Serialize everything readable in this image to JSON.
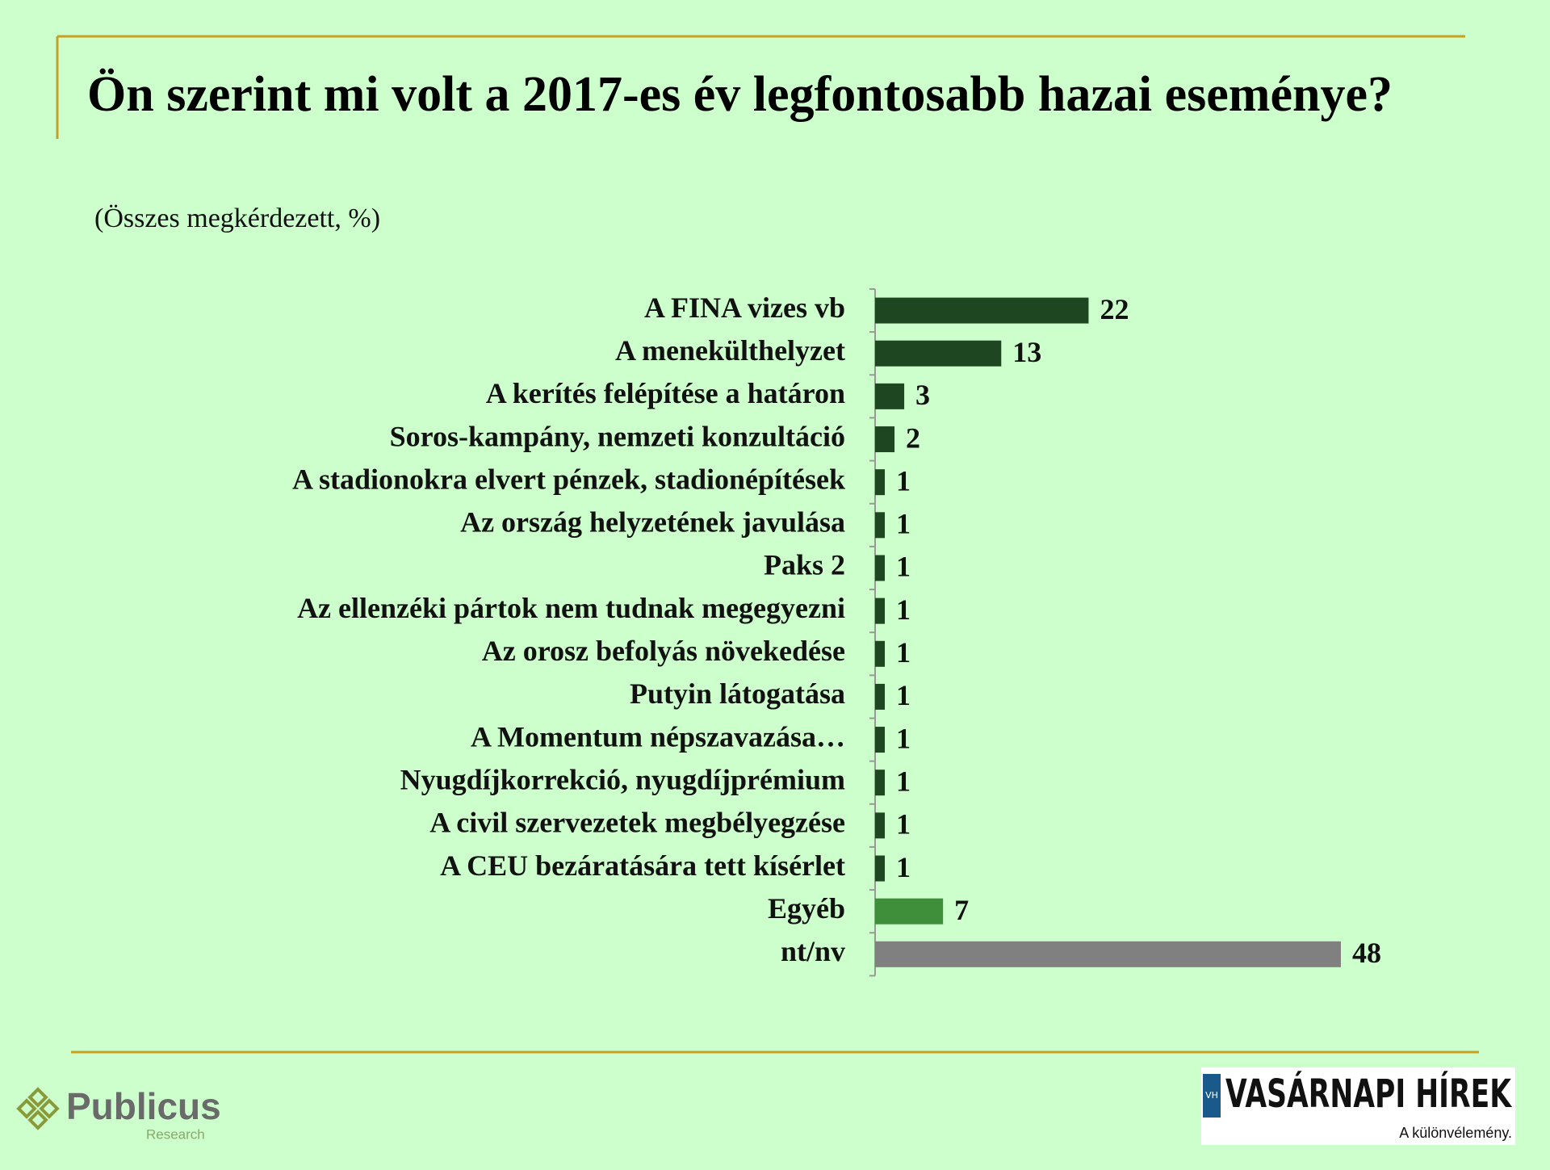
{
  "chart_data": {
    "type": "barh",
    "title": "Ön szerint mi volt a 2017-es év legfontosabb hazai eseménye?",
    "subtitle": "(Összes megkérdezett, %)",
    "categories": [
      "A FINA vizes vb",
      "A menekülthelyzet",
      "A kerítés felépítése a határon",
      "Soros-kampány, nemzeti konzultáció",
      "A stadionokra elvert pénzek, stadionépítések",
      "Az ország helyzetének javulása",
      "Paks 2",
      "Az ellenzéki pártok nem tudnak megegyezni",
      "Az orosz befolyás növekedése",
      "Putyin látogatása",
      "A Momentum népszavazása…",
      "Nyugdíjkorrekció, nyugdíjprémium",
      "A civil szervezetek megbélyegzése",
      "A CEU bezáratására tett kísérlet",
      "Egyéb",
      "nt/nv"
    ],
    "values": [
      22,
      13,
      3,
      2,
      1,
      1,
      1,
      1,
      1,
      1,
      1,
      1,
      1,
      1,
      7,
      48
    ],
    "colors": [
      "#1e4620",
      "#1e4620",
      "#1e4620",
      "#1e4620",
      "#1e4620",
      "#1e4620",
      "#1e4620",
      "#1e4620",
      "#1e4620",
      "#1e4620",
      "#1e4620",
      "#1e4620",
      "#1e4620",
      "#1e4620",
      "#3e8e3a",
      "#808080"
    ],
    "xlim": [
      0,
      50
    ]
  },
  "footer": {
    "left_logo": "Publicus",
    "left_logo_sub": "Research",
    "right_logo_badge": "VH",
    "right_logo": "VASÁRNAPI HÍREK",
    "right_logo_tagline": "A különvélemény."
  }
}
